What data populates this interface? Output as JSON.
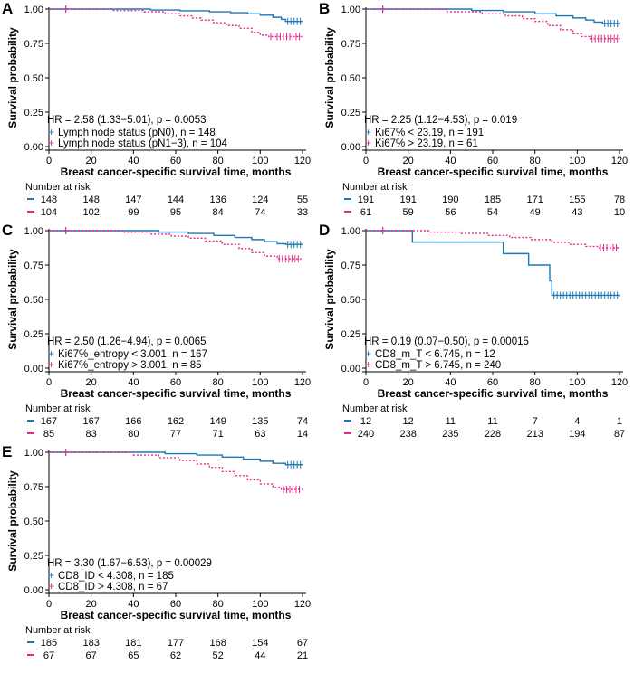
{
  "colors": {
    "group1": "#1f78b4",
    "group2": "#e7298a",
    "axis": "#000000",
    "grid": "#e6e6e6"
  },
  "chart_data": [
    {
      "type": "line",
      "panel": "A",
      "title": "",
      "xlabel": "Breast cancer-specific survival time, months",
      "ylabel": "Survival probability",
      "xlim": [
        0,
        120
      ],
      "ylim": [
        0,
        1
      ],
      "x_ticks": [
        "0",
        "20",
        "40",
        "60",
        "80",
        "100",
        "120"
      ],
      "y_ticks": [
        "0.00",
        "0.25",
        "0.50",
        "0.75",
        "1.00"
      ],
      "hr_text": "HR = 2.58 (1.33−5.01), p = 0.0053",
      "series": [
        {
          "name": "Lymph node status (pN0), n = 148",
          "steps": [
            [
              0,
              1
            ],
            [
              48,
              0.993
            ],
            [
              62,
              0.987
            ],
            [
              76,
              0.98
            ],
            [
              86,
              0.973
            ],
            [
              94,
              0.965
            ],
            [
              100,
              0.955
            ],
            [
              106,
              0.94
            ],
            [
              110,
              0.925
            ],
            [
              112,
              0.91
            ]
          ],
          "end": 120
        },
        {
          "name": "Lymph node status (pN1−3), n = 104",
          "steps": [
            [
              0,
              1
            ],
            [
              30,
              0.99
            ],
            [
              45,
              0.98
            ],
            [
              55,
              0.965
            ],
            [
              62,
              0.95
            ],
            [
              68,
              0.935
            ],
            [
              72,
              0.92
            ],
            [
              78,
              0.9
            ],
            [
              84,
              0.88
            ],
            [
              90,
              0.86
            ],
            [
              96,
              0.83
            ],
            [
              100,
              0.81
            ],
            [
              104,
              0.8
            ]
          ],
          "end": 120
        }
      ],
      "risk_table": {
        "title": "Number at risk",
        "times": [
          0,
          20,
          40,
          60,
          80,
          100,
          120
        ],
        "rows": [
          [
            "148",
            "148",
            "147",
            "144",
            "136",
            "124",
            "55"
          ],
          [
            "104",
            "102",
            "99",
            "95",
            "84",
            "74",
            "33"
          ]
        ]
      }
    },
    {
      "type": "line",
      "panel": "B",
      "title": "",
      "xlabel": "Breast cancer-specific survival time, months",
      "ylabel": "Survival probability",
      "xlim": [
        0,
        120
      ],
      "ylim": [
        0,
        1
      ],
      "x_ticks": [
        "0",
        "20",
        "40",
        "60",
        "80",
        "100",
        "120"
      ],
      "y_ticks": [
        "0.00",
        "0.25",
        "0.50",
        "0.75",
        "1.00"
      ],
      "hr_text": "HR = 2.25 (1.12−4.53), p = 0.019",
      "series": [
        {
          "name": "Ki67% < 23.19, n = 191",
          "steps": [
            [
              0,
              1
            ],
            [
              50,
              0.99
            ],
            [
              65,
              0.98
            ],
            [
              80,
              0.965
            ],
            [
              90,
              0.95
            ],
            [
              98,
              0.935
            ],
            [
              104,
              0.92
            ],
            [
              108,
              0.905
            ],
            [
              112,
              0.895
            ]
          ],
          "end": 120
        },
        {
          "name": "Ki67% > 23.19, n = 61",
          "steps": [
            [
              0,
              1
            ],
            [
              38,
              0.98
            ],
            [
              55,
              0.965
            ],
            [
              66,
              0.95
            ],
            [
              74,
              0.93
            ],
            [
              80,
              0.91
            ],
            [
              86,
              0.88
            ],
            [
              92,
              0.85
            ],
            [
              98,
              0.82
            ],
            [
              102,
              0.8
            ],
            [
              106,
              0.785
            ]
          ],
          "end": 120
        }
      ],
      "risk_table": {
        "title": "Number at risk",
        "times": [
          0,
          20,
          40,
          60,
          80,
          100,
          120
        ],
        "rows": [
          [
            "191",
            "191",
            "190",
            "185",
            "171",
            "155",
            "78"
          ],
          [
            "61",
            "59",
            "56",
            "54",
            "49",
            "43",
            "10"
          ]
        ]
      }
    },
    {
      "type": "line",
      "panel": "C",
      "title": "",
      "xlabel": "Breast cancer-specific survival time, months",
      "ylabel": "Survival probability",
      "xlim": [
        0,
        120
      ],
      "ylim": [
        0,
        1
      ],
      "x_ticks": [
        "0",
        "20",
        "40",
        "60",
        "80",
        "100",
        "120"
      ],
      "y_ticks": [
        "0.00",
        "0.25",
        "0.50",
        "0.75",
        "1.00"
      ],
      "hr_text": "HR = 2.50 (1.26−4.94), p = 0.0065",
      "series": [
        {
          "name": "Ki67%_entropy < 3.001, n = 167",
          "steps": [
            [
              0,
              1
            ],
            [
              52,
              0.99
            ],
            [
              66,
              0.98
            ],
            [
              78,
              0.965
            ],
            [
              88,
              0.95
            ],
            [
              96,
              0.935
            ],
            [
              102,
              0.92
            ],
            [
              108,
              0.905
            ],
            [
              112,
              0.9
            ]
          ],
          "end": 120
        },
        {
          "name": "Ki67%_entropy > 3.001, n = 85",
          "steps": [
            [
              0,
              1
            ],
            [
              35,
              0.99
            ],
            [
              48,
              0.975
            ],
            [
              58,
              0.96
            ],
            [
              66,
              0.945
            ],
            [
              74,
              0.925
            ],
            [
              82,
              0.9
            ],
            [
              90,
              0.87
            ],
            [
              96,
              0.84
            ],
            [
              102,
              0.815
            ],
            [
              108,
              0.795
            ]
          ],
          "end": 120
        }
      ],
      "risk_table": {
        "title": "Number at risk",
        "times": [
          0,
          20,
          40,
          60,
          80,
          100,
          120
        ],
        "rows": [
          [
            "167",
            "167",
            "166",
            "162",
            "149",
            "135",
            "74"
          ],
          [
            "85",
            "83",
            "80",
            "77",
            "71",
            "63",
            "14"
          ]
        ]
      }
    },
    {
      "type": "line",
      "panel": "D",
      "title": "",
      "xlabel": "Breast cancer-specific survival time, months",
      "ylabel": "Survival probability",
      "xlim": [
        0,
        120
      ],
      "ylim": [
        0,
        1
      ],
      "x_ticks": [
        "0",
        "20",
        "40",
        "60",
        "80",
        "100",
        "120"
      ],
      "y_ticks": [
        "0.00",
        "0.25",
        "0.50",
        "0.75",
        "1.00"
      ],
      "hr_text": "HR = 0.19 (0.07−0.50), p = 0.00015",
      "series": [
        {
          "name": "CD8_m_T < 6.745, n = 12",
          "steps": [
            [
              0,
              1
            ],
            [
              22,
              0.917
            ],
            [
              65,
              0.833
            ],
            [
              77,
              0.75
            ],
            [
              87,
              0.635
            ],
            [
              88,
              0.53
            ]
          ],
          "end": 120
        },
        {
          "name": "CD8_m_T > 6.745, n = 240",
          "steps": [
            [
              0,
              1
            ],
            [
              30,
              0.99
            ],
            [
              45,
              0.98
            ],
            [
              58,
              0.965
            ],
            [
              68,
              0.95
            ],
            [
              78,
              0.935
            ],
            [
              88,
              0.915
            ],
            [
              96,
              0.9
            ],
            [
              104,
              0.885
            ],
            [
              110,
              0.875
            ]
          ],
          "end": 120
        }
      ],
      "risk_table": {
        "title": "Number at risk",
        "times": [
          0,
          20,
          40,
          60,
          80,
          100,
          120
        ],
        "rows": [
          [
            "12",
            "12",
            "11",
            "11",
            "7",
            "4",
            "1"
          ],
          [
            "240",
            "238",
            "235",
            "228",
            "213",
            "194",
            "87"
          ]
        ]
      }
    },
    {
      "type": "line",
      "panel": "E",
      "title": "",
      "xlabel": "Breast cancer-specific survival time, months",
      "ylabel": "Survival probability",
      "xlim": [
        0,
        120
      ],
      "ylim": [
        0,
        1
      ],
      "x_ticks": [
        "0",
        "20",
        "40",
        "60",
        "80",
        "100",
        "120"
      ],
      "y_ticks": [
        "0.00",
        "0.25",
        "0.50",
        "0.75",
        "1.00"
      ],
      "hr_text": "HR = 3.30 (1.67−6.53), p = 0.00029",
      "series": [
        {
          "name": "CD8_ID < 4.308, n = 185",
          "steps": [
            [
              0,
              1
            ],
            [
              55,
              0.99
            ],
            [
              70,
              0.98
            ],
            [
              82,
              0.965
            ],
            [
              92,
              0.95
            ],
            [
              100,
              0.935
            ],
            [
              106,
              0.92
            ],
            [
              112,
              0.91
            ]
          ],
          "end": 120
        },
        {
          "name": "CD8_ID > 4.308, n = 67",
          "steps": [
            [
              0,
              1
            ],
            [
              40,
              0.98
            ],
            [
              52,
              0.96
            ],
            [
              62,
              0.94
            ],
            [
              70,
              0.915
            ],
            [
              76,
              0.89
            ],
            [
              82,
              0.86
            ],
            [
              88,
              0.83
            ],
            [
              94,
              0.8
            ],
            [
              100,
              0.77
            ],
            [
              106,
              0.745
            ],
            [
              110,
              0.73
            ]
          ],
          "end": 120
        }
      ],
      "risk_table": {
        "title": "Number at risk",
        "times": [
          0,
          20,
          40,
          60,
          80,
          100,
          120
        ],
        "rows": [
          [
            "185",
            "183",
            "181",
            "177",
            "168",
            "154",
            "67"
          ],
          [
            "67",
            "67",
            "65",
            "62",
            "52",
            "44",
            "21"
          ]
        ]
      }
    }
  ]
}
